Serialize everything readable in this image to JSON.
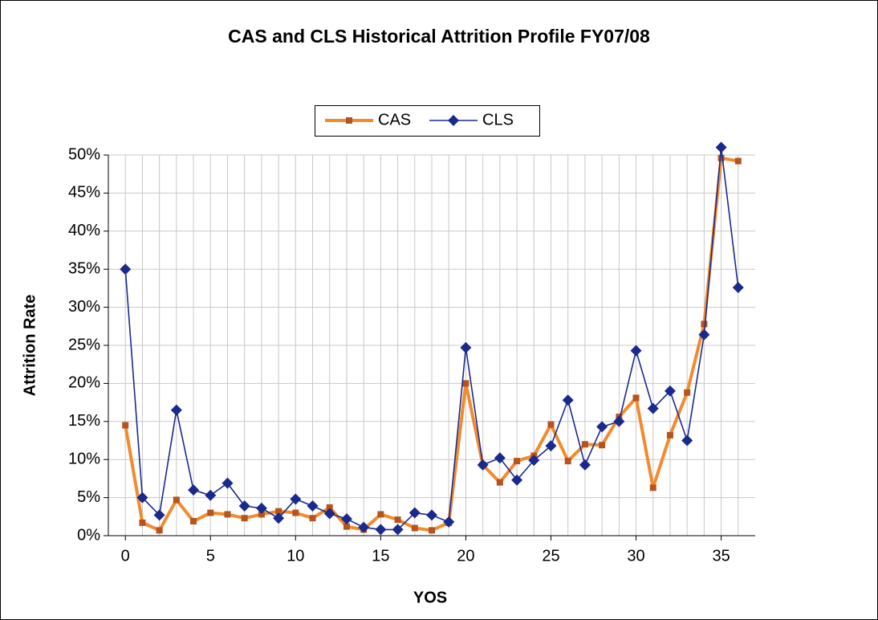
{
  "chart_data": {
    "type": "line",
    "title": "CAS and CLS Historical Attrition Profile FY07/08",
    "x_label": "YOS",
    "y_label": "Attrition Rate",
    "x": [
      0,
      1,
      2,
      3,
      4,
      5,
      6,
      7,
      8,
      9,
      10,
      11,
      12,
      13,
      14,
      15,
      16,
      17,
      18,
      19,
      20,
      21,
      22,
      23,
      24,
      25,
      26,
      27,
      28,
      29,
      30,
      31,
      32,
      33,
      34,
      35,
      36
    ],
    "series": [
      {
        "name": "CAS",
        "color": "#f28a2e",
        "marker": "square",
        "marker_color": "#b5541f",
        "values": [
          14.5,
          1.7,
          0.7,
          4.7,
          1.9,
          3.0,
          2.8,
          2.3,
          2.8,
          3.2,
          3.0,
          2.3,
          3.7,
          1.2,
          0.8,
          2.8,
          2.1,
          1.0,
          0.7,
          1.7,
          20.0,
          9.3,
          7.0,
          9.8,
          10.5,
          14.6,
          9.8,
          12.0,
          11.9,
          15.6,
          18.1,
          6.3,
          13.2,
          18.8,
          27.8,
          49.6,
          49.2
        ]
      },
      {
        "name": "CLS",
        "color": "#1a2a8c",
        "marker": "diamond",
        "marker_color": "#1a2a8c",
        "values": [
          35.0,
          5.0,
          2.7,
          16.5,
          6.0,
          5.3,
          6.9,
          3.9,
          3.6,
          2.3,
          4.8,
          3.9,
          2.9,
          2.2,
          1.1,
          0.8,
          0.8,
          3.0,
          2.7,
          1.8,
          24.7,
          9.3,
          10.2,
          7.3,
          9.9,
          11.8,
          17.8,
          9.3,
          14.3,
          15.0,
          24.3,
          16.7,
          19.0,
          12.5,
          26.4,
          51.0,
          32.6
        ]
      }
    ],
    "xlim": [
      -1,
      37
    ],
    "xticks": [
      0,
      5,
      10,
      15,
      20,
      25,
      30,
      35
    ],
    "ylim": [
      0,
      50
    ],
    "yticks": [
      {
        "value": 0,
        "label": "0%"
      },
      {
        "value": 5,
        "label": "5%"
      },
      {
        "value": 10,
        "label": "10%"
      },
      {
        "value": 15,
        "label": "15%"
      },
      {
        "value": 20,
        "label": "20%"
      },
      {
        "value": 25,
        "label": "25%"
      },
      {
        "value": 30,
        "label": "30%"
      },
      {
        "value": 35,
        "label": "35%"
      },
      {
        "value": 40,
        "label": "40%"
      },
      {
        "value": 45,
        "label": "45%"
      },
      {
        "value": 50,
        "label": "50%"
      }
    ],
    "grid": true,
    "legend": "top"
  }
}
